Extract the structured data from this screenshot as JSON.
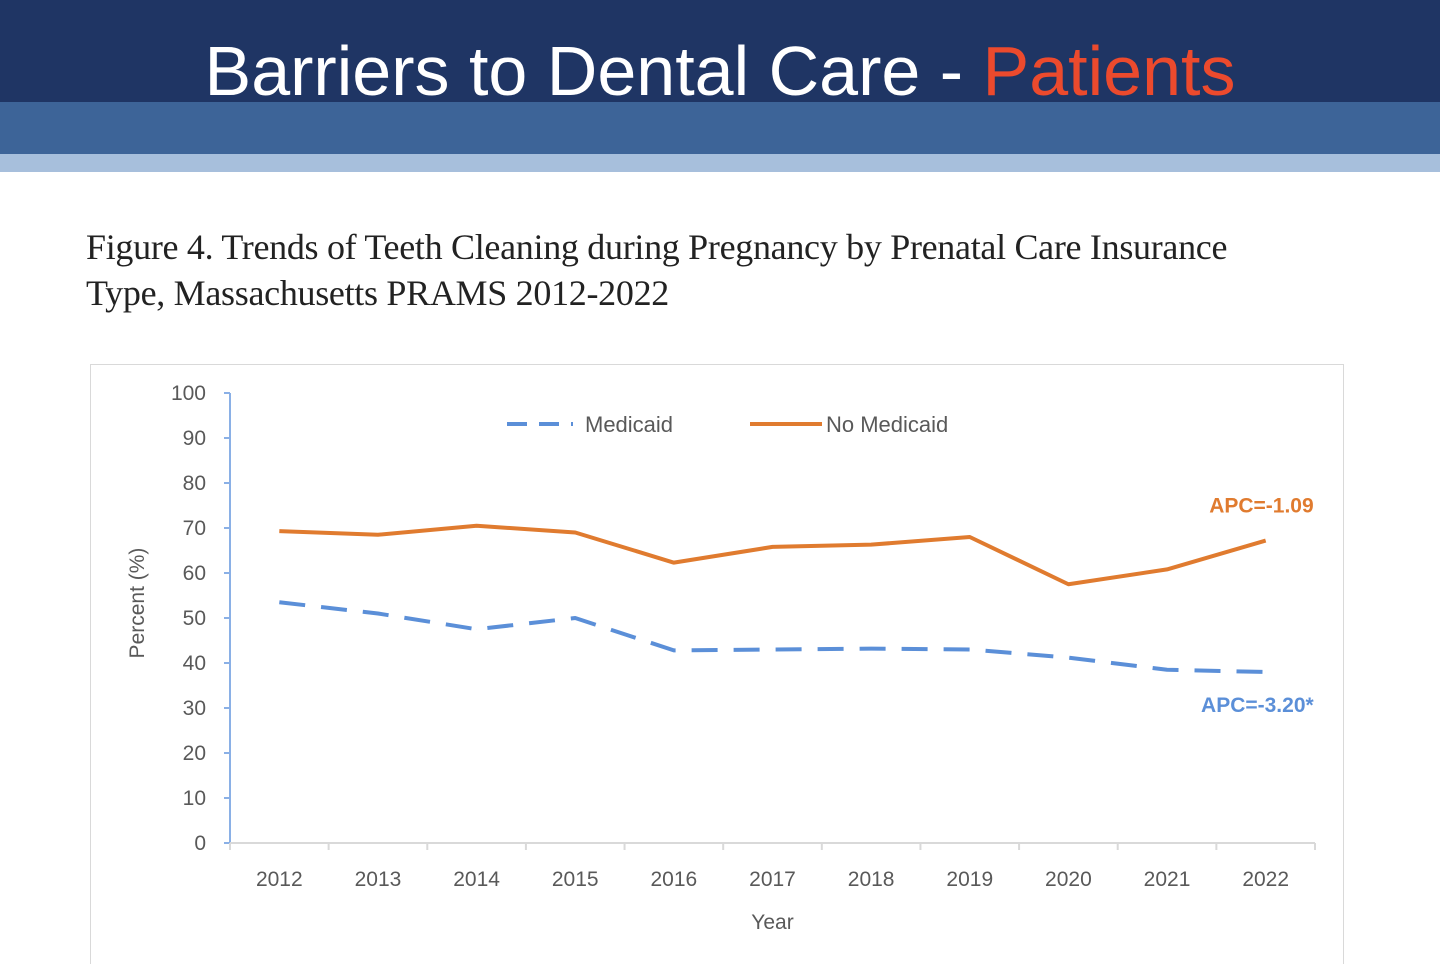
{
  "slide": {
    "title_main": "Barriers to Dental Care - ",
    "title_accent": "Patients"
  },
  "figure": {
    "caption_line1": "Figure 4. Trends of Teeth Cleaning during Pregnancy by Prenatal Care Insurance",
    "caption_line2": "Type, Massachusetts PRAMS 2012-2022"
  },
  "colors": {
    "medicaid": "#5b8fd8",
    "no_medicaid": "#e07b2f",
    "axis": "#8ab0e6"
  },
  "chart_data": {
    "type": "line",
    "title": "Trends of Teeth Cleaning during Pregnancy by Prenatal Care Insurance Type, Massachusetts PRAMS 2012-2022",
    "xlabel": "Year",
    "ylabel": "Percent (%)",
    "ylim": [
      0,
      100
    ],
    "yticks": [
      "0",
      "10",
      "20",
      "30",
      "40",
      "50",
      "60",
      "70",
      "80",
      "90",
      "100"
    ],
    "categories": [
      "2012",
      "2013",
      "2014",
      "2015",
      "2016",
      "2017",
      "2018",
      "2019",
      "2020",
      "2021",
      "2022"
    ],
    "legend_position": "top-center",
    "grid": false,
    "series": [
      {
        "name": "Medicaid",
        "style": "dashed",
        "values": [
          53.5,
          51,
          47.5,
          50,
          42.8,
          43,
          43.2,
          43,
          41.2,
          38.5,
          38
        ],
        "annotation": "APC=-3.20*"
      },
      {
        "name": "No Medicaid",
        "style": "solid",
        "values": [
          69.3,
          68.5,
          70.5,
          69,
          62.3,
          65.8,
          66.3,
          68,
          57.5,
          60.8,
          67.2
        ],
        "annotation": "APC=-1.09"
      }
    ]
  }
}
